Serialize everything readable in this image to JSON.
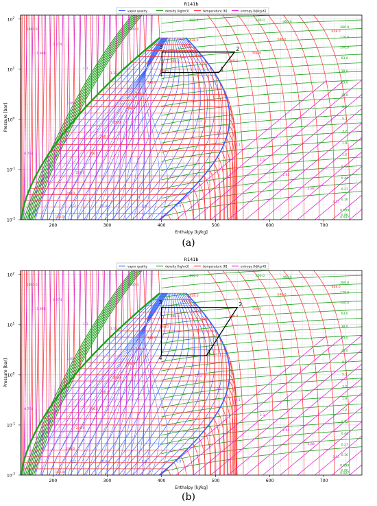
{
  "colors": {
    "quality": "#3060ff",
    "density": "#1aa01a",
    "temperature": "#ff3030",
    "entropy": "#e020d0",
    "cycle": "#000000"
  },
  "panels": [
    {
      "label": "(a)",
      "chart_data": {
        "type": "line",
        "title": "R141b",
        "xlabel": "Enthalpy [kJ/kg]",
        "ylabel": "Pressure [bar]",
        "xlim": [
          140,
          770
        ],
        "ylim": [
          0.01,
          120
        ],
        "yscale": "log",
        "xticks": [
          "200",
          "300",
          "400",
          "500",
          "600",
          "700"
        ],
        "yticks": [
          "10^-2",
          "10^-1",
          "10^0",
          "10^1",
          "10^2"
        ],
        "grid": true,
        "legend_placement": "top",
        "series": [
          {
            "name": "vapor quality",
            "color_key": "quality"
          },
          {
            "name": "density [kg/m3]",
            "color_key": "density"
          },
          {
            "name": "temperature [K]",
            "color_key": "temperature"
          },
          {
            "name": "entropy [kJ/kg-K]",
            "color_key": "entropy"
          }
        ],
        "cycle": {
          "points": [
            {
              "label": "1",
              "h": 506,
              "p": 8.6
            },
            {
              "label": "2",
              "h": 535,
              "p": 22
            },
            {
              "label": "3",
              "h": 401,
              "p": 22
            },
            {
              "label": "4",
              "h": 401,
              "p": 8.6
            }
          ]
        },
        "density_labels": [
          {
            "text": "1400.0",
            "h": 161,
            "p": 60
          },
          {
            "text": "1000.0",
            "h": 348,
            "p": 60
          },
          {
            "text": "600.0",
            "h": 460,
            "p": 90
          },
          {
            "text": "600.0",
            "h": 582,
            "p": 90
          },
          {
            "text": "460.0",
            "h": 632,
            "p": 85
          },
          {
            "text": "280.0",
            "h": 738,
            "p": 66
          },
          {
            "text": "170.0",
            "h": 738,
            "p": 42
          },
          {
            "text": "100.0",
            "h": 738,
            "p": 26
          },
          {
            "text": "63.0",
            "h": 738,
            "p": 16
          },
          {
            "text": "38.0",
            "h": 738,
            "p": 8.8
          },
          {
            "text": "23.0",
            "h": 738,
            "p": 5.2
          },
          {
            "text": "14.0",
            "h": 738,
            "p": 2.9
          },
          {
            "text": "8.6",
            "h": 738,
            "p": 1.7
          },
          {
            "text": "5.3",
            "h": 738,
            "p": 0.98
          },
          {
            "text": "3.2",
            "h": 738,
            "p": 0.56
          },
          {
            "text": "1.9",
            "h": 738,
            "p": 0.32
          },
          {
            "text": "1.2",
            "h": 738,
            "p": 0.19
          },
          {
            "text": "0.72",
            "h": 738,
            "p": 0.11
          },
          {
            "text": "0.44",
            "h": 738,
            "p": 0.064
          },
          {
            "text": "0.27",
            "h": 738,
            "p": 0.039
          },
          {
            "text": "0.16",
            "h": 738,
            "p": 0.024
          },
          {
            "text": "0.099",
            "h": 738,
            "p": 0.0148
          },
          {
            "text": "0.06",
            "h": 738,
            "p": 0.0118
          },
          {
            "text": "0.037",
            "h": 738,
            "p": 0.0106
          }
        ],
        "temperature_labels": [
          {
            "text": "428.0",
            "h": 460,
            "p": 36
          },
          {
            "text": "408.0",
            "h": 445,
            "p": 28
          },
          {
            "text": "388.0",
            "h": 425,
            "p": 14
          },
          {
            "text": "368.0",
            "h": 405,
            "p": 8.6
          },
          {
            "text": "348.0",
            "h": 382,
            "p": 5.2
          },
          {
            "text": "328.0",
            "h": 360,
            "p": 3.1
          },
          {
            "text": "308.0",
            "h": 343,
            "p": 1.6
          },
          {
            "text": "288.0",
            "h": 318,
            "p": 0.84
          },
          {
            "text": "268.0",
            "h": 295,
            "p": 0.43
          },
          {
            "text": "248.0",
            "h": 275,
            "p": 0.2
          },
          {
            "text": "228.0",
            "h": 250,
            "p": 0.082
          },
          {
            "text": "208.0",
            "h": 232,
            "p": 0.032
          },
          {
            "text": "188.0",
            "h": 212,
            "p": 0.011
          },
          {
            "text": "628.0",
            "h": 722,
            "p": 55
          },
          {
            "text": "548.0",
            "h": 622,
            "p": 38
          },
          {
            "text": "508.0",
            "h": 576,
            "p": 20
          },
          {
            "text": "468.0",
            "h": 533,
            "p": 14
          }
        ],
        "entropy_labels": [
          {
            "text": "0.784",
            "h": 155,
            "p": 0.2
          },
          {
            "text": "0.888",
            "h": 178,
            "p": 20
          },
          {
            "text": "0.974",
            "h": 208,
            "p": 30
          },
          {
            "text": "1.1",
            "h": 260,
            "p": 10
          },
          {
            "text": "1.23",
            "h": 312,
            "p": 8
          },
          {
            "text": "1.05",
            "h": 232,
            "p": 2
          },
          {
            "text": "1.73",
            "h": 468,
            "p": 0.9
          },
          {
            "text": "1.89",
            "h": 503,
            "p": 0.5
          },
          {
            "text": "2.1",
            "h": 541,
            "p": 0.3
          },
          {
            "text": "2.3",
            "h": 586,
            "p": 0.15
          },
          {
            "text": "2.62",
            "h": 630,
            "p": 0.075
          },
          {
            "text": "2.88",
            "h": 676,
            "p": 0.04
          },
          {
            "text": "3.15",
            "h": 722,
            "p": 0.022
          }
        ],
        "quality_labels": [
          {
            "text": "0.2",
            "h": 238,
            "p": 0.018
          },
          {
            "text": "0.4",
            "h": 295,
            "p": 0.018
          },
          {
            "text": "0.6",
            "h": 368,
            "p": 0.018
          },
          {
            "text": "0.8",
            "h": 432,
            "p": 0.018
          }
        ]
      }
    },
    {
      "label": "(b)",
      "chart_data": {
        "type": "line",
        "title": "R141b",
        "xlabel": "Enthalpy [kJ/kg]",
        "ylabel": "Pressure [bar]",
        "xlim": [
          140,
          770
        ],
        "ylim": [
          0.01,
          120
        ],
        "yscale": "log",
        "xticks": [
          "200",
          "300",
          "400",
          "500",
          "600",
          "700"
        ],
        "yticks": [
          "10^-2",
          "10^-1",
          "10^0",
          "10^1",
          "10^2"
        ],
        "grid": true,
        "legend_placement": "top",
        "series": [
          {
            "name": "vapor quality",
            "color_key": "quality"
          },
          {
            "name": "density [kg/m3]",
            "color_key": "density"
          },
          {
            "name": "temperature [K]",
            "color_key": "temperature"
          },
          {
            "name": "entropy [kJ/kg-K]",
            "color_key": "entropy"
          }
        ],
        "cycle": {
          "points": [
            {
              "label": "1",
              "h": 483,
              "p": 2.4
            },
            {
              "label": "2",
              "h": 540,
              "p": 22
            },
            {
              "label": "3",
              "h": 400,
              "p": 22
            },
            {
              "label": "4",
              "h": 400,
              "p": 2.4
            }
          ]
        },
        "density_labels": [
          {
            "text": "1400.0",
            "h": 161,
            "p": 60
          },
          {
            "text": "1000.0",
            "h": 348,
            "p": 60
          },
          {
            "text": "600.0",
            "h": 460,
            "p": 90
          },
          {
            "text": "600.0",
            "h": 582,
            "p": 90
          },
          {
            "text": "460.0",
            "h": 632,
            "p": 85
          },
          {
            "text": "280.0",
            "h": 738,
            "p": 66
          },
          {
            "text": "170.0",
            "h": 738,
            "p": 42
          },
          {
            "text": "100.0",
            "h": 738,
            "p": 26
          },
          {
            "text": "63.0",
            "h": 738,
            "p": 16
          },
          {
            "text": "38.0",
            "h": 738,
            "p": 8.8
          },
          {
            "text": "23.0",
            "h": 738,
            "p": 5.2
          },
          {
            "text": "14.0",
            "h": 738,
            "p": 2.9
          },
          {
            "text": "8.6",
            "h": 738,
            "p": 1.7
          },
          {
            "text": "5.3",
            "h": 738,
            "p": 0.98
          },
          {
            "text": "3.2",
            "h": 738,
            "p": 0.56
          },
          {
            "text": "1.9",
            "h": 738,
            "p": 0.32
          },
          {
            "text": "1.2",
            "h": 738,
            "p": 0.19
          },
          {
            "text": "0.72",
            "h": 738,
            "p": 0.11
          },
          {
            "text": "0.44",
            "h": 738,
            "p": 0.064
          },
          {
            "text": "0.27",
            "h": 738,
            "p": 0.039
          },
          {
            "text": "0.16",
            "h": 738,
            "p": 0.024
          },
          {
            "text": "0.099",
            "h": 738,
            "p": 0.0148
          },
          {
            "text": "0.06",
            "h": 738,
            "p": 0.0118
          },
          {
            "text": "0.037",
            "h": 738,
            "p": 0.0106
          }
        ],
        "temperature_labels": [
          {
            "text": "428.0",
            "h": 460,
            "p": 36
          },
          {
            "text": "408.0",
            "h": 445,
            "p": 28
          },
          {
            "text": "388.0",
            "h": 425,
            "p": 14
          },
          {
            "text": "368.0",
            "h": 405,
            "p": 8.6
          },
          {
            "text": "348.0",
            "h": 382,
            "p": 5.2
          },
          {
            "text": "328.0",
            "h": 360,
            "p": 3.1
          },
          {
            "text": "308.0",
            "h": 343,
            "p": 1.6
          },
          {
            "text": "288.0",
            "h": 318,
            "p": 0.84
          },
          {
            "text": "268.0",
            "h": 295,
            "p": 0.43
          },
          {
            "text": "248.0",
            "h": 275,
            "p": 0.2
          },
          {
            "text": "228.0",
            "h": 250,
            "p": 0.082
          },
          {
            "text": "208.0",
            "h": 232,
            "p": 0.032
          },
          {
            "text": "188.0",
            "h": 212,
            "p": 0.011
          },
          {
            "text": "628.0",
            "h": 722,
            "p": 55
          },
          {
            "text": "548.0",
            "h": 622,
            "p": 38
          },
          {
            "text": "508.0",
            "h": 576,
            "p": 20
          },
          {
            "text": "468.0",
            "h": 533,
            "p": 14
          }
        ],
        "entropy_labels": [
          {
            "text": "0.784",
            "h": 155,
            "p": 0.2
          },
          {
            "text": "0.888",
            "h": 178,
            "p": 20
          },
          {
            "text": "0.974",
            "h": 208,
            "p": 30
          },
          {
            "text": "1.1",
            "h": 260,
            "p": 10
          },
          {
            "text": "1.23",
            "h": 312,
            "p": 8
          },
          {
            "text": "1.05",
            "h": 232,
            "p": 2
          },
          {
            "text": "1.73",
            "h": 468,
            "p": 0.9
          },
          {
            "text": "1.89",
            "h": 503,
            "p": 0.5
          },
          {
            "text": "2.1",
            "h": 541,
            "p": 0.3
          },
          {
            "text": "2.3",
            "h": 586,
            "p": 0.15
          },
          {
            "text": "2.62",
            "h": 630,
            "p": 0.075
          },
          {
            "text": "2.88",
            "h": 676,
            "p": 0.04
          },
          {
            "text": "3.15",
            "h": 722,
            "p": 0.022
          }
        ],
        "quality_labels": [
          {
            "text": "0.2",
            "h": 238,
            "p": 0.018
          },
          {
            "text": "0.4",
            "h": 295,
            "p": 0.018
          },
          {
            "text": "0.6",
            "h": 368,
            "p": 0.018
          },
          {
            "text": "0.8",
            "h": 432,
            "p": 0.018
          }
        ]
      }
    }
  ]
}
